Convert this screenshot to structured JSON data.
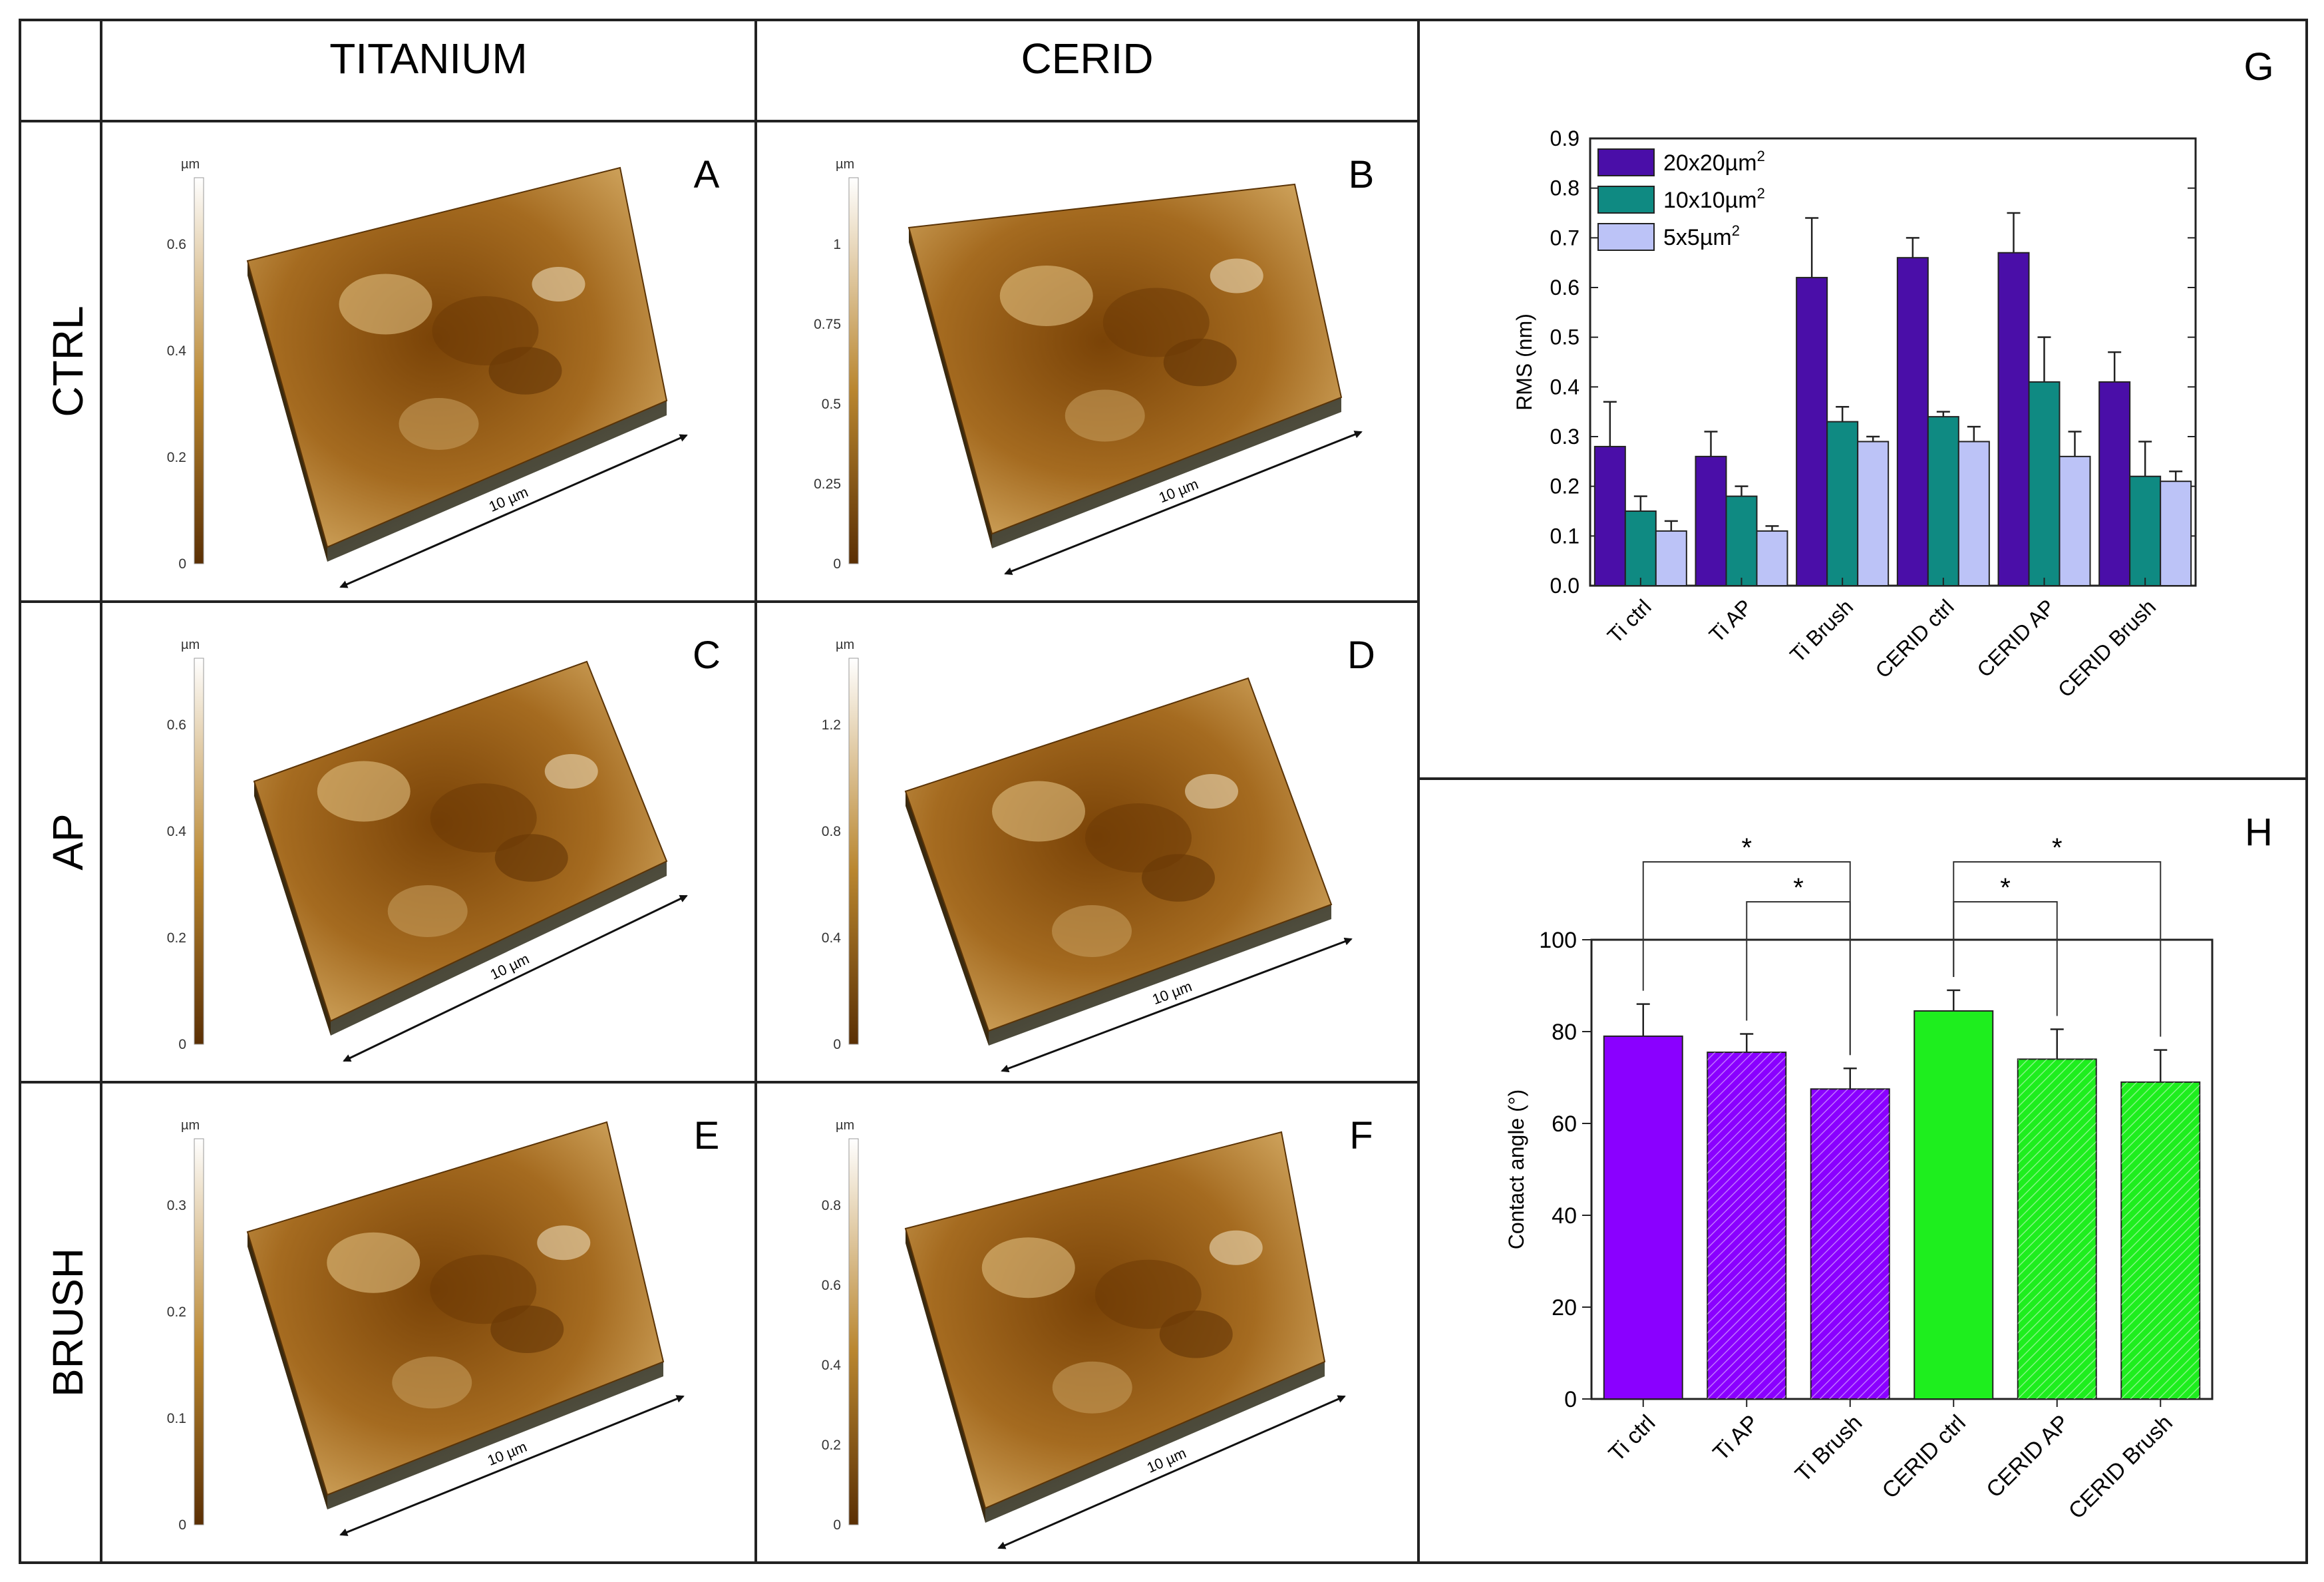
{
  "colors": {
    "rms_20": "#4a0ea8",
    "rms_10": "#0f8a82",
    "rms_5": "#bcc3f7",
    "ca_ti": "#8a00ff",
    "ca_cerid": "#1eee1e",
    "afm_dark": "#6b3a05",
    "afm_mid": "#b8832c",
    "afm_light": "#f4e3b8"
  },
  "grid": {
    "col_titanium": "TITANIUM",
    "col_cerid": "CERID",
    "row_ctrl": "CTRL",
    "row_ap": "AP",
    "row_brush": "BRUSH"
  },
  "panels": [
    {
      "letter": "A",
      "unit": "µm",
      "ticks": [
        "0.6",
        "0.4",
        "0.2",
        "0"
      ],
      "scale": "10 µm"
    },
    {
      "letter": "B",
      "unit": "µm",
      "ticks": [
        "1",
        "0.75",
        "0.5",
        "0.25",
        "0"
      ],
      "scale": "10 µm"
    },
    {
      "letter": "C",
      "unit": "µm",
      "ticks": [
        "0.6",
        "0.4",
        "0.2",
        "0"
      ],
      "scale": "10 µm"
    },
    {
      "letter": "D",
      "unit": "µm",
      "ticks": [
        "1.2",
        "0.8",
        "0.4",
        "0"
      ],
      "scale": "10 µm"
    },
    {
      "letter": "E",
      "unit": "µm",
      "ticks": [
        "0.3",
        "0.2",
        "0.1",
        "0"
      ],
      "scale": "10 µm"
    },
    {
      "letter": "F",
      "unit": "µm",
      "ticks": [
        "0.8",
        "0.6",
        "0.4",
        "0.2",
        "0"
      ],
      "scale": "10 µm"
    }
  ],
  "chart_data": [
    {
      "panel": "G",
      "type": "bar",
      "ylabel": "RMS (nm)",
      "ylim": [
        0,
        0.9
      ],
      "yticks": [
        "0.0",
        "0.1",
        "0.2",
        "0.3",
        "0.4",
        "0.5",
        "0.6",
        "0.7",
        "0.8",
        "0.9"
      ],
      "legend_position": "top-left",
      "categories": [
        "Ti ctrl",
        "Ti AP",
        "Ti Brush",
        "CERID ctrl",
        "CERID AP",
        "CERID Brush"
      ],
      "series": [
        {
          "name": "20x20µm",
          "sup": "2",
          "values": [
            0.28,
            0.26,
            0.62,
            0.66,
            0.67,
            0.41
          ],
          "errors": [
            0.09,
            0.05,
            0.12,
            0.04,
            0.08,
            0.06
          ]
        },
        {
          "name": "10x10µm",
          "sup": "2",
          "values": [
            0.15,
            0.18,
            0.33,
            0.34,
            0.41,
            0.22
          ],
          "errors": [
            0.03,
            0.02,
            0.03,
            0.01,
            0.09,
            0.07
          ]
        },
        {
          "name": "5x5µm",
          "sup": "2",
          "values": [
            0.11,
            0.11,
            0.29,
            0.29,
            0.26,
            0.21
          ],
          "errors": [
            0.02,
            0.01,
            0.01,
            0.03,
            0.05,
            0.02
          ]
        }
      ]
    },
    {
      "panel": "H",
      "type": "bar",
      "ylabel": "Contact angle (°)",
      "ylim": [
        0,
        100
      ],
      "yticks": [
        "0",
        "20",
        "40",
        "60",
        "80",
        "100"
      ],
      "categories": [
        "Ti ctrl",
        "Ti AP",
        "Ti Brush",
        "CERID ctrl",
        "CERID AP",
        "CERID Brush"
      ],
      "values": [
        79,
        75.5,
        67.5,
        84.5,
        74,
        69
      ],
      "errors": [
        7,
        4,
        4.5,
        4.5,
        6.5,
        7
      ],
      "hatched": [
        false,
        true,
        true,
        false,
        true,
        true
      ],
      "groups": [
        "ti",
        "ti",
        "ti",
        "cerid",
        "cerid",
        "cerid"
      ],
      "significance": [
        {
          "from": 0,
          "to": 2,
          "level": 2,
          "label": "*"
        },
        {
          "from": 1,
          "to": 2,
          "level": 1,
          "label": "*"
        },
        {
          "from": 3,
          "to": 5,
          "level": 2,
          "label": "*"
        },
        {
          "from": 3,
          "to": 4,
          "level": 1,
          "label": "*"
        }
      ]
    }
  ]
}
